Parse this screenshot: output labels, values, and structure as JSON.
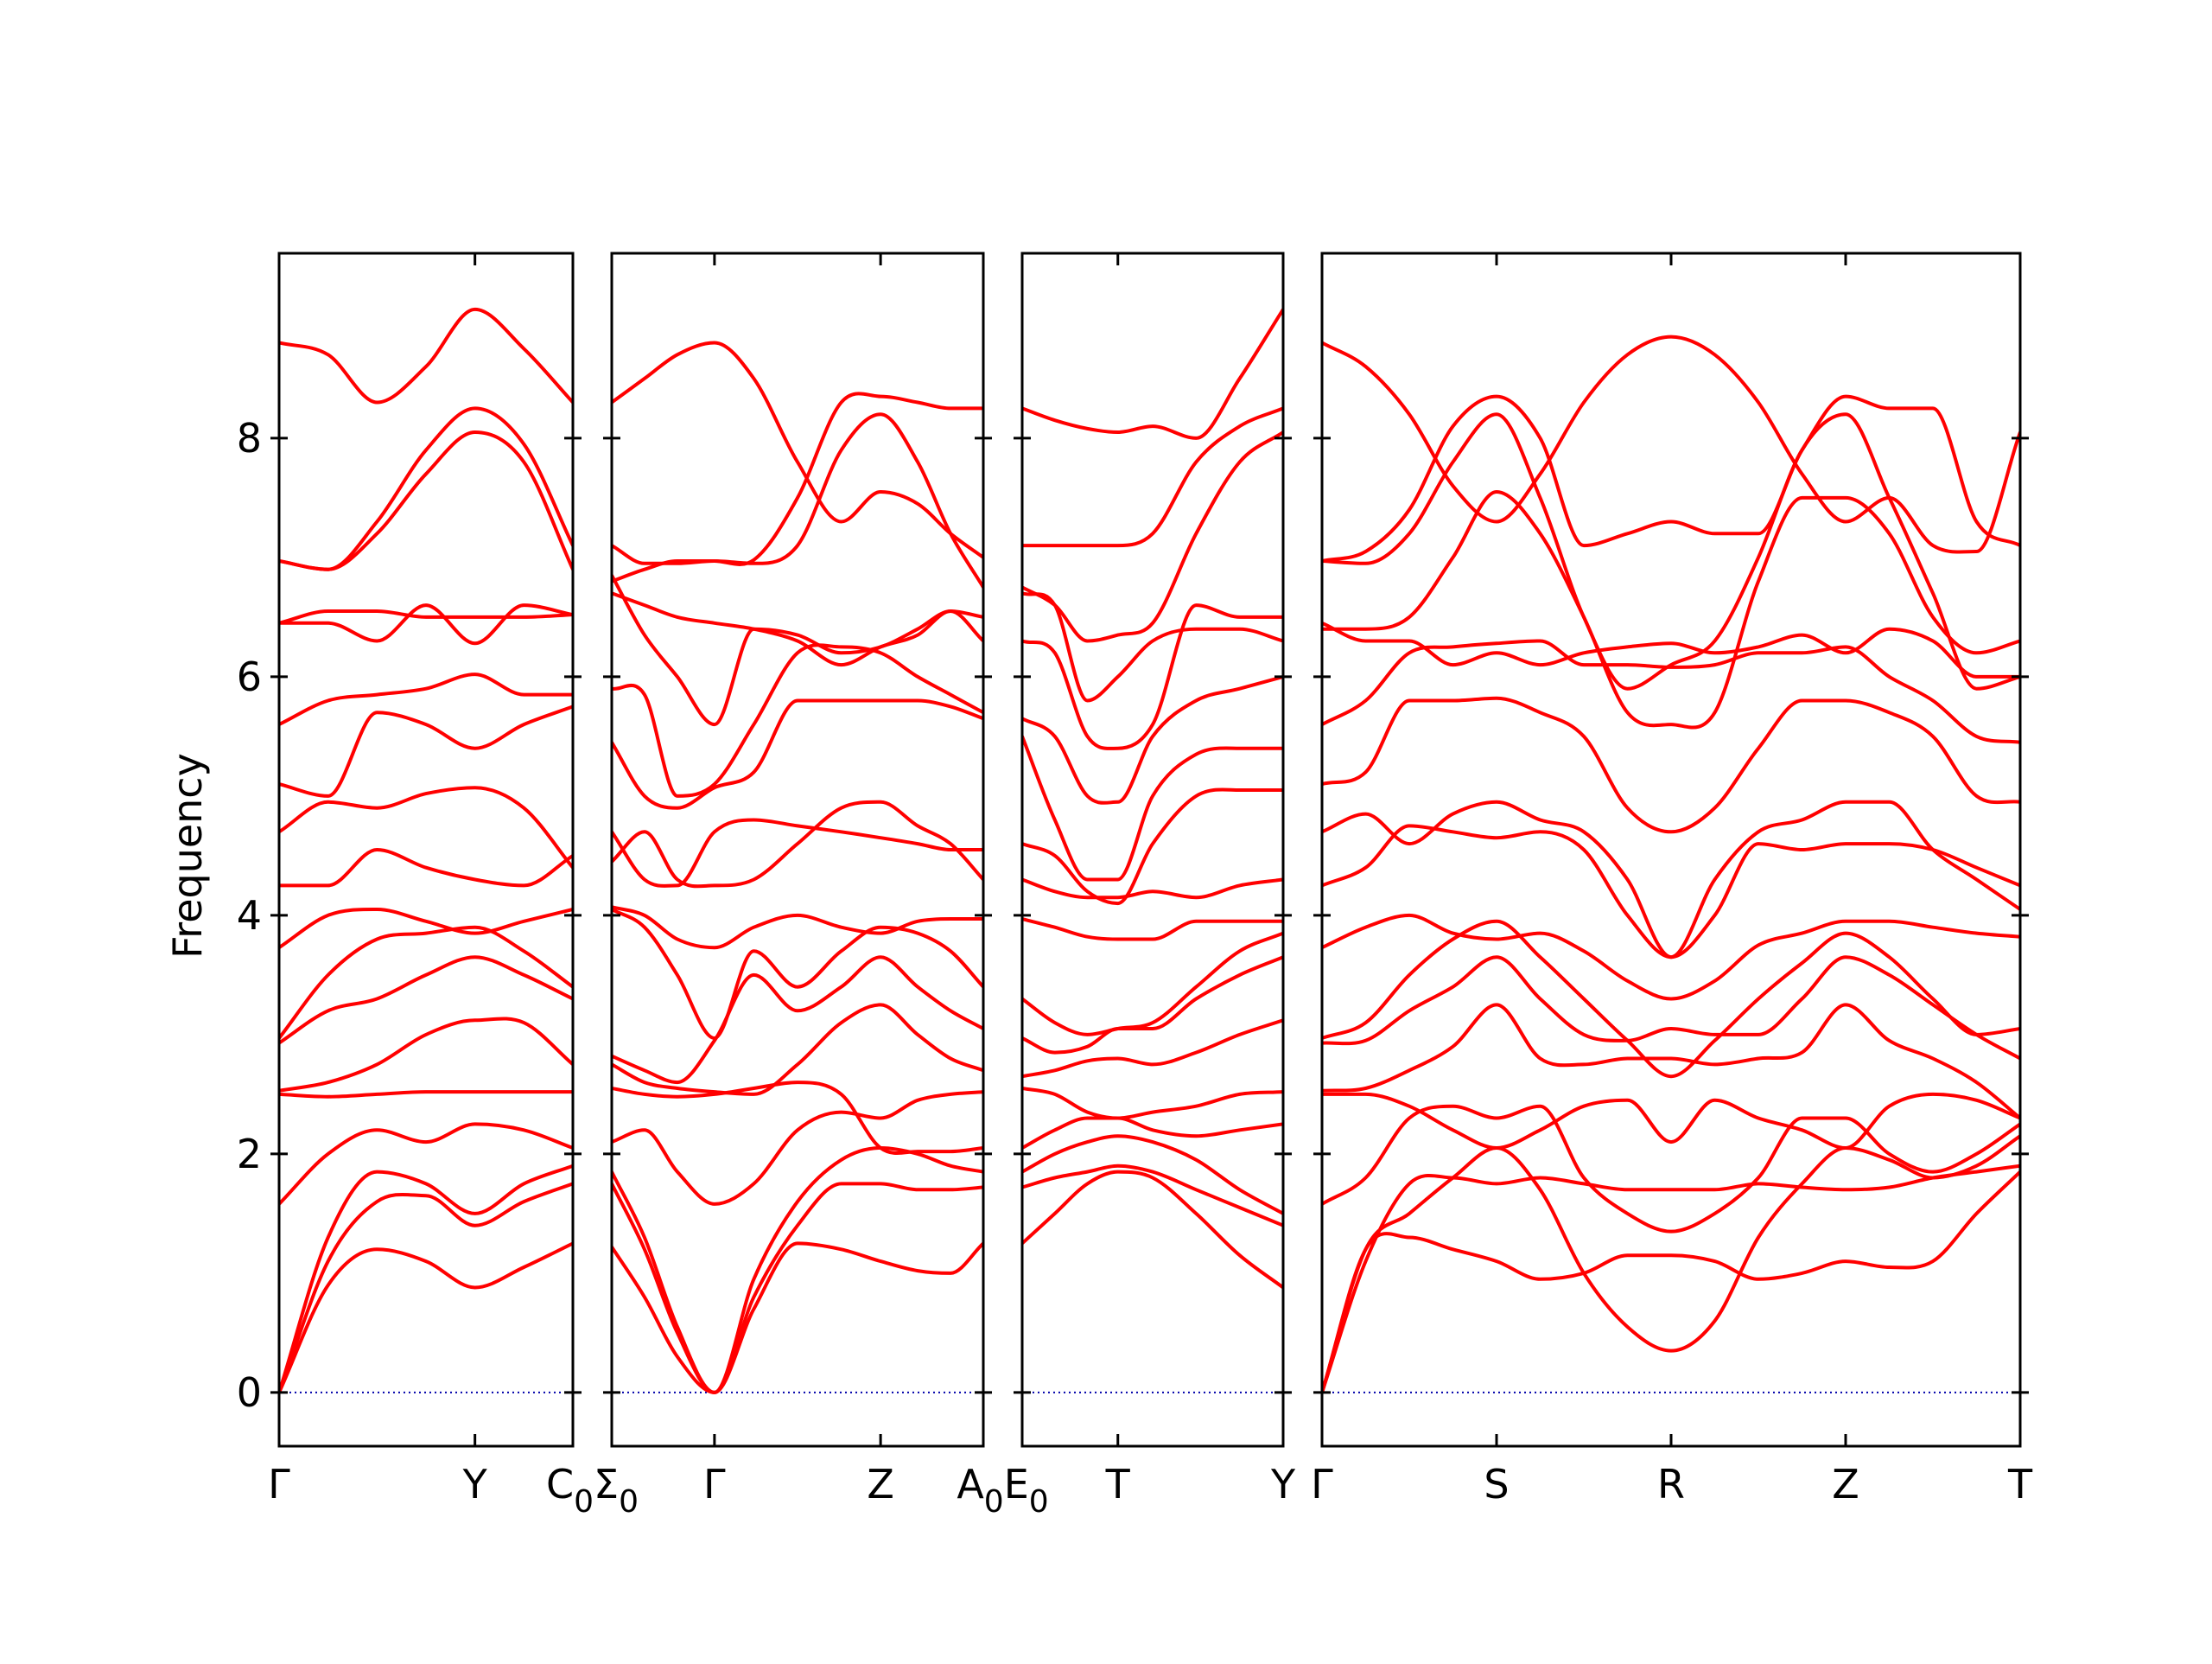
{
  "chart_data": {
    "type": "line",
    "title": "",
    "ylabel": "Frequency",
    "xlabel": "",
    "ylim": [
      -0.45,
      9.55
    ],
    "yticks": [
      0,
      2,
      4,
      6,
      8
    ],
    "ytick_labels": [
      "0",
      "2",
      "4",
      "6",
      "8"
    ],
    "grid": false,
    "legend": "none",
    "colors": {
      "bands": "#ff0000",
      "zero_line": "#0000aa",
      "axes": "#000000"
    },
    "panels": [
      {
        "name": "panel-1",
        "xlim": [
          0,
          1.5
        ],
        "ticks": [
          {
            "x": 0,
            "label": "Γ"
          },
          {
            "x": 1.0,
            "label": "Y"
          },
          {
            "x": 1.5,
            "label": "C"
          }
        ],
        "x": [
          0,
          0.25,
          0.5,
          0.75,
          1.0,
          1.25,
          1.5
        ],
        "bands": [
          [
            0,
            0.9,
            1.2,
            1.1,
            0.88,
            1.05,
            1.25
          ],
          [
            0,
            1.1,
            1.6,
            1.65,
            1.4,
            1.6,
            1.75
          ],
          [
            0,
            1.3,
            1.85,
            1.75,
            1.5,
            1.75,
            1.9
          ],
          [
            1.58,
            2.0,
            2.2,
            2.1,
            2.25,
            2.2,
            2.05
          ],
          [
            2.5,
            2.48,
            2.5,
            2.52,
            2.52,
            2.52,
            2.52
          ],
          [
            2.53,
            2.6,
            2.75,
            3.0,
            3.12,
            3.1,
            2.75
          ],
          [
            2.93,
            3.2,
            3.3,
            3.5,
            3.65,
            3.5,
            3.3
          ],
          [
            2.97,
            3.5,
            3.8,
            3.85,
            3.9,
            3.7,
            3.4
          ],
          [
            3.73,
            4.0,
            4.05,
            3.95,
            3.85,
            3.95,
            4.05
          ],
          [
            4.25,
            4.25,
            4.55,
            4.4,
            4.3,
            4.25,
            4.5
          ],
          [
            4.7,
            4.95,
            4.9,
            5.02,
            5.07,
            4.9,
            4.4
          ],
          [
            5.1,
            5.0,
            5.7,
            5.6,
            5.4,
            5.6,
            5.75
          ],
          [
            5.6,
            5.8,
            5.85,
            5.9,
            6.02,
            5.85,
            5.85
          ],
          [
            6.45,
            6.45,
            6.3,
            6.6,
            6.28,
            6.6,
            6.52
          ],
          [
            6.45,
            6.55,
            6.55,
            6.5,
            6.5,
            6.5,
            6.52
          ],
          [
            6.97,
            6.9,
            7.2,
            7.7,
            8.05,
            7.8,
            6.9
          ],
          [
            6.97,
            6.9,
            7.3,
            7.9,
            8.25,
            7.95,
            7.1
          ],
          [
            8.8,
            8.7,
            8.3,
            8.6,
            9.08,
            8.75,
            8.3
          ]
        ]
      },
      {
        "name": "panel-2",
        "xlim": [
          0,
          1.7
        ],
        "ticks": [
          {
            "x": 0,
            "label": "Σ"
          },
          {
            "x": 0.47,
            "label": "Γ"
          },
          {
            "x": 1.23,
            "label": "Z"
          },
          {
            "x": 1.7,
            "label": "A"
          }
        ],
        "x": [
          0,
          0.15,
          0.3,
          0.47,
          0.65,
          0.85,
          1.05,
          1.23,
          1.4,
          1.55,
          1.7
        ],
        "bands": [
          [
            1.22,
            0.8,
            0.3,
            0,
            0.7,
            1.25,
            1.2,
            1.1,
            1.02,
            1.0,
            1.25
          ],
          [
            1.75,
            1.2,
            0.5,
            0,
            0.8,
            1.4,
            1.75,
            1.75,
            1.7,
            1.7,
            1.72
          ],
          [
            1.85,
            1.3,
            0.55,
            0,
            0.95,
            1.6,
            1.95,
            2.05,
            2.0,
            1.9,
            1.85
          ],
          [
            2.1,
            2.2,
            1.85,
            1.58,
            1.75,
            2.2,
            2.35,
            2.3,
            2.45,
            2.5,
            2.52
          ],
          [
            2.55,
            2.5,
            2.48,
            2.5,
            2.55,
            2.6,
            2.5,
            2.05,
            2.02,
            2.02,
            2.05
          ],
          [
            2.75,
            2.6,
            2.55,
            2.52,
            2.5,
            2.75,
            3.1,
            3.25,
            3.0,
            2.8,
            2.7
          ],
          [
            2.82,
            2.7,
            2.6,
            2.95,
            3.5,
            3.2,
            3.4,
            3.65,
            3.4,
            3.2,
            3.05
          ],
          [
            4.05,
            3.9,
            3.5,
            2.97,
            3.7,
            3.4,
            3.7,
            3.9,
            3.85,
            3.7,
            3.4
          ],
          [
            4.07,
            4.0,
            3.8,
            3.73,
            3.9,
            4.0,
            3.9,
            3.85,
            3.95,
            3.97,
            3.97
          ],
          [
            4.45,
            4.7,
            4.3,
            4.25,
            4.3,
            4.6,
            4.9,
            4.95,
            4.75,
            4.6,
            4.3
          ],
          [
            4.7,
            4.3,
            4.25,
            4.7,
            4.8,
            4.75,
            4.7,
            4.65,
            4.6,
            4.55,
            4.55
          ],
          [
            5.45,
            5.0,
            4.9,
            5.07,
            5.2,
            5.8,
            5.8,
            5.8,
            5.8,
            5.75,
            5.65
          ],
          [
            5.9,
            5.85,
            5.0,
            5.1,
            5.6,
            6.2,
            6.25,
            6.2,
            6.0,
            5.85,
            5.7
          ],
          [
            6.85,
            6.35,
            6.0,
            5.6,
            6.4,
            6.35,
            6.2,
            6.25,
            6.4,
            6.55,
            6.5
          ],
          [
            6.7,
            6.6,
            6.5,
            6.45,
            6.4,
            6.3,
            6.1,
            6.25,
            6.35,
            6.55,
            6.3
          ],
          [
            7.1,
            6.95,
            6.95,
            6.97,
            6.95,
            7.1,
            7.9,
            8.2,
            7.8,
            7.2,
            6.75
          ],
          [
            8.3,
            8.5,
            8.7,
            8.8,
            8.5,
            7.8,
            7.3,
            7.55,
            7.45,
            7.2,
            7.0
          ],
          [
            6.8,
            6.9,
            6.97,
            6.97,
            6.98,
            7.5,
            8.3,
            8.35,
            8.3,
            8.25,
            8.25
          ]
        ]
      },
      {
        "name": "panel-3",
        "xlim": [
          0,
          1.2
        ],
        "ticks": [
          {
            "x": 0,
            "label": "E"
          },
          {
            "x": 0.44,
            "label": "T"
          },
          {
            "x": 1.2,
            "label": "Y"
          }
        ],
        "x": [
          0,
          0.15,
          0.3,
          0.44,
          0.6,
          0.8,
          1.0,
          1.2
        ],
        "bands": [
          [
            1.25,
            1.5,
            1.75,
            1.85,
            1.8,
            1.5,
            1.15,
            0.88
          ],
          [
            1.72,
            1.8,
            1.85,
            1.9,
            1.85,
            1.7,
            1.55,
            1.4
          ],
          [
            1.85,
            2.0,
            2.1,
            2.15,
            2.1,
            1.95,
            1.7,
            1.5
          ],
          [
            2.05,
            2.2,
            2.3,
            2.3,
            2.2,
            2.15,
            2.2,
            2.25
          ],
          [
            2.55,
            2.5,
            2.35,
            2.3,
            2.35,
            2.4,
            2.5,
            2.52
          ],
          [
            2.65,
            2.7,
            2.78,
            2.8,
            2.75,
            2.85,
            3.0,
            3.12
          ],
          [
            2.97,
            2.85,
            2.9,
            3.05,
            3.05,
            3.3,
            3.5,
            3.65
          ],
          [
            3.3,
            3.1,
            3.0,
            3.05,
            3.1,
            3.4,
            3.7,
            3.85
          ],
          [
            3.97,
            3.9,
            3.82,
            3.8,
            3.8,
            3.95,
            3.95,
            3.95
          ],
          [
            4.3,
            4.2,
            4.15,
            4.15,
            4.2,
            4.15,
            4.25,
            4.3
          ],
          [
            4.6,
            4.5,
            4.2,
            4.1,
            4.6,
            5.0,
            5.05,
            5.05
          ],
          [
            5.5,
            4.8,
            4.3,
            4.3,
            5.0,
            5.35,
            5.4,
            5.4
          ],
          [
            5.65,
            5.5,
            5.0,
            4.95,
            5.5,
            5.8,
            5.9,
            6.0
          ],
          [
            6.3,
            6.2,
            5.5,
            5.4,
            5.6,
            6.6,
            6.5,
            6.5
          ],
          [
            6.7,
            6.6,
            5.8,
            6.0,
            6.3,
            6.4,
            6.4,
            6.3
          ],
          [
            6.75,
            6.6,
            6.3,
            6.35,
            6.45,
            7.2,
            7.8,
            8.05
          ],
          [
            7.1,
            7.1,
            7.1,
            7.1,
            7.2,
            7.8,
            8.1,
            8.25
          ],
          [
            8.25,
            8.15,
            8.08,
            8.05,
            8.1,
            8.0,
            8.5,
            9.08
          ]
        ]
      },
      {
        "name": "panel-4",
        "xlim": [
          0,
          3.2
        ],
        "ticks": [
          {
            "x": 0,
            "label": "Γ"
          },
          {
            "x": 0.8,
            "label": "S"
          },
          {
            "x": 1.6,
            "label": "R"
          },
          {
            "x": 2.4,
            "label": "Z"
          },
          {
            "x": 3.2,
            "label": "T"
          }
        ],
        "x": [
          0,
          0.2,
          0.4,
          0.6,
          0.8,
          1.0,
          1.2,
          1.4,
          1.6,
          1.8,
          2.0,
          2.2,
          2.4,
          2.6,
          2.8,
          3.0,
          3.2
        ],
        "bands": [
          [
            0,
            1.2,
            1.3,
            1.2,
            1.1,
            0.95,
            1.0,
            1.15,
            1.15,
            1.1,
            0.95,
            1.0,
            1.1,
            1.05,
            1.1,
            1.5,
            1.85
          ],
          [
            0,
            1.1,
            1.75,
            1.8,
            1.75,
            1.8,
            1.75,
            1.7,
            1.7,
            1.7,
            1.75,
            1.72,
            1.7,
            1.72,
            1.8,
            1.85,
            1.9
          ],
          [
            0,
            1.2,
            1.5,
            1.8,
            2.05,
            1.7,
            1.0,
            0.55,
            0.35,
            0.6,
            1.3,
            1.75,
            2.05,
            1.95,
            1.8,
            1.9,
            2.15
          ],
          [
            1.58,
            1.8,
            2.3,
            2.4,
            2.3,
            2.4,
            1.8,
            1.5,
            1.35,
            1.5,
            1.8,
            2.3,
            2.3,
            2.0,
            1.85,
            2.0,
            2.25
          ],
          [
            2.5,
            2.5,
            2.4,
            2.2,
            2.05,
            2.2,
            2.4,
            2.45,
            2.1,
            2.45,
            2.3,
            2.2,
            2.05,
            2.4,
            2.5,
            2.45,
            2.3
          ],
          [
            2.53,
            2.55,
            2.7,
            2.9,
            3.25,
            2.8,
            2.75,
            2.8,
            2.8,
            2.75,
            2.8,
            2.85,
            3.25,
            2.95,
            2.8,
            2.6,
            2.3
          ],
          [
            2.93,
            2.95,
            3.2,
            3.4,
            3.65,
            3.3,
            3.0,
            2.95,
            3.05,
            3.0,
            3.0,
            3.3,
            3.65,
            3.5,
            3.25,
            3.0,
            2.8
          ],
          [
            2.97,
            3.1,
            3.5,
            3.8,
            3.95,
            3.65,
            3.3,
            2.95,
            2.65,
            2.95,
            3.3,
            3.6,
            3.85,
            3.65,
            3.3,
            3.0,
            3.05
          ],
          [
            3.73,
            3.9,
            4.0,
            3.85,
            3.8,
            3.85,
            3.7,
            3.45,
            3.3,
            3.45,
            3.75,
            3.85,
            3.95,
            3.95,
            3.9,
            3.85,
            3.82
          ],
          [
            4.25,
            4.4,
            4.75,
            4.7,
            4.65,
            4.7,
            4.55,
            4.0,
            3.65,
            4.0,
            4.6,
            4.55,
            4.6,
            4.6,
            4.55,
            4.4,
            4.25
          ],
          [
            4.7,
            4.85,
            4.6,
            4.85,
            4.95,
            4.8,
            4.7,
            4.3,
            3.65,
            4.3,
            4.7,
            4.8,
            4.95,
            4.95,
            4.55,
            4.3,
            4.05
          ],
          [
            5.1,
            5.2,
            5.8,
            5.8,
            5.82,
            5.7,
            5.5,
            4.9,
            4.7,
            4.9,
            5.4,
            5.8,
            5.8,
            5.7,
            5.5,
            5.0,
            4.95
          ],
          [
            5.6,
            5.8,
            6.2,
            6.25,
            6.28,
            6.3,
            6.1,
            6.1,
            6.08,
            6.1,
            6.2,
            6.2,
            6.25,
            6.0,
            5.8,
            5.5,
            5.45
          ],
          [
            6.45,
            6.3,
            6.3,
            6.1,
            6.2,
            6.1,
            6.2,
            6.25,
            6.28,
            6.2,
            6.25,
            6.35,
            6.2,
            6.4,
            6.3,
            6.0,
            6.0
          ],
          [
            6.4,
            6.4,
            6.5,
            7.0,
            7.55,
            7.2,
            6.5,
            5.7,
            5.6,
            5.7,
            6.8,
            7.5,
            7.5,
            7.2,
            6.5,
            6.2,
            6.3
          ],
          [
            6.97,
            6.95,
            7.2,
            7.8,
            8.2,
            7.5,
            6.5,
            5.9,
            6.1,
            6.3,
            7.0,
            7.9,
            8.2,
            7.5,
            6.7,
            5.9,
            6.0
          ],
          [
            6.97,
            7.05,
            7.4,
            8.1,
            8.35,
            8.0,
            7.1,
            7.2,
            7.3,
            7.2,
            7.2,
            7.9,
            8.35,
            8.25,
            8.25,
            7.3,
            7.1
          ],
          [
            8.8,
            8.6,
            8.2,
            7.6,
            7.3,
            7.7,
            8.3,
            8.7,
            8.85,
            8.7,
            8.3,
            7.7,
            7.3,
            7.5,
            7.1,
            7.05,
            8.05
          ]
        ]
      }
    ],
    "boundary_labels": [
      {
        "left": "C",
        "right": "Σ",
        "sub": "0"
      },
      {
        "left": "A",
        "right": "E",
        "sub": "0"
      }
    ]
  }
}
